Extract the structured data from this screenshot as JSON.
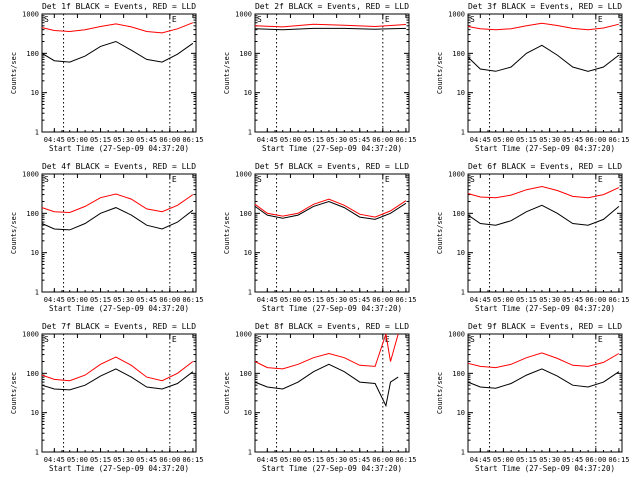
{
  "colors": {
    "events": "#000000",
    "lld": "#ff0000",
    "axes": "#000000",
    "background": "#ffffff"
  },
  "chart_data": [
    {
      "type": "line",
      "title": "Det 1f BLACK = Events, RED = LLD",
      "xlabel": "Start Time (27-Sep-09 04:37:20)",
      "ylabel": "Counts/sec",
      "y_scale": "log",
      "ylim": [
        1,
        1000
      ],
      "x_ticks": [
        "04:45",
        "05:00",
        "05:15",
        "05:30",
        "05:45",
        "06:00",
        "06:15"
      ],
      "y_ticks": [
        "1",
        "10",
        "100",
        "1000"
      ],
      "markers": [
        "S",
        "E"
      ],
      "series": [
        {
          "color": "black",
          "x": [
            "04:37",
            "04:45",
            "04:55",
            "05:05",
            "05:15",
            "05:25",
            "05:35",
            "05:45",
            "05:55",
            "06:05",
            "06:15"
          ],
          "values": [
            100,
            65,
            60,
            85,
            150,
            200,
            120,
            70,
            60,
            95,
            180
          ]
        },
        {
          "color": "red",
          "x": [
            "04:37",
            "04:45",
            "04:55",
            "05:05",
            "05:15",
            "05:25",
            "05:35",
            "05:45",
            "05:55",
            "06:05",
            "06:15"
          ],
          "values": [
            450,
            380,
            360,
            400,
            480,
            560,
            470,
            360,
            330,
            420,
            600
          ]
        }
      ]
    },
    {
      "type": "line",
      "title": "Det 2f BLACK = Events, RED = LLD",
      "xlabel": "Start Time (27-Sep-09 04:37:20)",
      "ylabel": "Counts/sec",
      "y_scale": "log",
      "ylim": [
        1,
        1000
      ],
      "x_ticks": [
        "04:45",
        "05:00",
        "05:15",
        "05:30",
        "05:45",
        "06:00",
        "06:15"
      ],
      "y_ticks": [
        "1",
        "10",
        "100",
        "1000"
      ],
      "markers": [
        "S",
        "E"
      ],
      "series": [
        {
          "color": "black",
          "x": [
            "04:37",
            "04:55",
            "05:15",
            "05:35",
            "05:55",
            "06:15"
          ],
          "values": [
            420,
            400,
            430,
            430,
            410,
            430
          ]
        },
        {
          "color": "red",
          "x": [
            "04:37",
            "04:55",
            "05:15",
            "05:35",
            "05:55",
            "06:15"
          ],
          "values": [
            500,
            470,
            550,
            520,
            480,
            540
          ]
        }
      ]
    },
    {
      "type": "line",
      "title": "Det 3f BLACK = Events, RED = LLD",
      "xlabel": "Start Time (27-Sep-09 04:37:20)",
      "ylabel": "Counts/sec",
      "y_scale": "log",
      "ylim": [
        1,
        1000
      ],
      "x_ticks": [
        "04:45",
        "05:00",
        "05:15",
        "05:30",
        "05:45",
        "06:00",
        "06:15"
      ],
      "y_ticks": [
        "1",
        "10",
        "100",
        "1000"
      ],
      "markers": [
        "S",
        "E"
      ],
      "series": [
        {
          "color": "black",
          "x": [
            "04:37",
            "04:45",
            "04:55",
            "05:05",
            "05:15",
            "05:25",
            "05:35",
            "05:45",
            "05:55",
            "06:05",
            "06:15"
          ],
          "values": [
            80,
            40,
            35,
            45,
            100,
            160,
            90,
            45,
            35,
            45,
            90
          ]
        },
        {
          "color": "red",
          "x": [
            "04:37",
            "04:45",
            "04:55",
            "05:05",
            "05:15",
            "05:25",
            "05:35",
            "05:45",
            "05:55",
            "06:05",
            "06:15"
          ],
          "values": [
            480,
            420,
            400,
            420,
            500,
            580,
            510,
            430,
            400,
            440,
            550
          ]
        }
      ]
    },
    {
      "type": "line",
      "title": "Det 4f BLACK = Events, RED = LLD",
      "xlabel": "Start Time (27-Sep-09 04:37:20)",
      "ylabel": "Counts/sec",
      "y_scale": "log",
      "ylim": [
        1,
        1000
      ],
      "x_ticks": [
        "04:45",
        "05:00",
        "05:15",
        "05:30",
        "05:45",
        "06:00",
        "06:15"
      ],
      "y_ticks": [
        "1",
        "10",
        "100",
        "1000"
      ],
      "markers": [
        "S",
        "E"
      ],
      "series": [
        {
          "color": "black",
          "x": [
            "04:37",
            "04:45",
            "04:55",
            "05:05",
            "05:15",
            "05:25",
            "05:35",
            "05:45",
            "05:55",
            "06:05",
            "06:15"
          ],
          "values": [
            55,
            40,
            38,
            55,
            100,
            140,
            90,
            50,
            40,
            60,
            120
          ]
        },
        {
          "color": "red",
          "x": [
            "04:37",
            "04:45",
            "04:55",
            "05:05",
            "05:15",
            "05:25",
            "05:35",
            "05:45",
            "05:55",
            "06:05",
            "06:15"
          ],
          "values": [
            140,
            110,
            105,
            150,
            250,
            310,
            230,
            130,
            110,
            160,
            300
          ]
        }
      ]
    },
    {
      "type": "line",
      "title": "Det 5f BLACK = Events, RED = LLD",
      "xlabel": "Start Time (27-Sep-09 04:37:20)",
      "ylabel": "Counts/sec",
      "y_scale": "log",
      "ylim": [
        1,
        1000
      ],
      "x_ticks": [
        "04:45",
        "05:00",
        "05:15",
        "05:30",
        "05:45",
        "06:00",
        "06:15"
      ],
      "y_ticks": [
        "1",
        "10",
        "100",
        "1000"
      ],
      "markers": [
        "S",
        "E"
      ],
      "series": [
        {
          "color": "black",
          "x": [
            "04:37",
            "04:45",
            "04:55",
            "05:05",
            "05:15",
            "05:25",
            "05:35",
            "05:45",
            "05:55",
            "06:05",
            "06:15"
          ],
          "values": [
            150,
            90,
            75,
            90,
            150,
            200,
            140,
            80,
            70,
            100,
            180
          ]
        },
        {
          "color": "red",
          "x": [
            "04:37",
            "04:45",
            "04:55",
            "05:05",
            "05:15",
            "05:25",
            "05:35",
            "05:45",
            "05:55",
            "06:05",
            "06:15"
          ],
          "values": [
            170,
            100,
            85,
            100,
            170,
            230,
            160,
            95,
            80,
            115,
            210
          ]
        }
      ]
    },
    {
      "type": "line",
      "title": "Det 6f BLACK = Events, RED = LLD",
      "xlabel": "Start Time (27-Sep-09 04:37:20)",
      "ylabel": "Counts/sec",
      "y_scale": "log",
      "ylim": [
        1,
        1000
      ],
      "x_ticks": [
        "04:45",
        "05:00",
        "05:15",
        "05:30",
        "05:45",
        "06:00",
        "06:15"
      ],
      "y_ticks": [
        "1",
        "10",
        "100",
        "1000"
      ],
      "markers": [
        "S",
        "E"
      ],
      "series": [
        {
          "color": "black",
          "x": [
            "04:37",
            "04:45",
            "04:55",
            "05:05",
            "05:15",
            "05:25",
            "05:35",
            "05:45",
            "05:55",
            "06:05",
            "06:15"
          ],
          "values": [
            90,
            55,
            50,
            65,
            110,
            160,
            100,
            55,
            50,
            70,
            150
          ]
        },
        {
          "color": "red",
          "x": [
            "04:37",
            "04:45",
            "04:55",
            "05:05",
            "05:15",
            "05:25",
            "05:35",
            "05:45",
            "05:55",
            "06:05",
            "06:15"
          ],
          "values": [
            320,
            260,
            250,
            290,
            400,
            480,
            380,
            270,
            250,
            300,
            450
          ]
        }
      ]
    },
    {
      "type": "line",
      "title": "Det 7f BLACK = Events, RED = LLD",
      "xlabel": "Start Time (27-Sep-09 04:37:20)",
      "ylabel": "Counts/sec",
      "y_scale": "log",
      "ylim": [
        1,
        1000
      ],
      "x_ticks": [
        "04:45",
        "05:00",
        "05:15",
        "05:30",
        "05:45",
        "06:00",
        "06:15"
      ],
      "y_ticks": [
        "1",
        "10",
        "100",
        "1000"
      ],
      "markers": [
        "S",
        "E"
      ],
      "series": [
        {
          "color": "black",
          "x": [
            "04:37",
            "04:45",
            "04:55",
            "05:05",
            "05:15",
            "05:25",
            "05:35",
            "05:45",
            "05:55",
            "06:05",
            "06:15"
          ],
          "values": [
            50,
            40,
            38,
            50,
            85,
            130,
            80,
            45,
            40,
            55,
            110
          ]
        },
        {
          "color": "red",
          "x": [
            "04:37",
            "04:45",
            "04:55",
            "05:05",
            "05:15",
            "05:25",
            "05:35",
            "05:45",
            "05:55",
            "06:05",
            "06:15"
          ],
          "values": [
            90,
            70,
            65,
            90,
            170,
            260,
            160,
            80,
            65,
            100,
            200
          ]
        }
      ]
    },
    {
      "type": "line",
      "title": "Det 8f BLACK = Events, RED = LLD",
      "xlabel": "Start Time (27-Sep-09 04:37:20)",
      "ylabel": "Counts/sec",
      "y_scale": "log",
      "ylim": [
        1,
        1000
      ],
      "x_ticks": [
        "04:45",
        "05:00",
        "05:15",
        "05:30",
        "05:45",
        "06:00",
        "06:15"
      ],
      "y_ticks": [
        "1",
        "10",
        "100",
        "1000"
      ],
      "markers": [
        "S",
        "E"
      ],
      "series": [
        {
          "color": "black",
          "x": [
            "04:37",
            "04:45",
            "04:55",
            "05:05",
            "05:15",
            "05:25",
            "05:35",
            "05:45",
            "05:55",
            "06:02",
            "06:05",
            "06:10"
          ],
          "values": [
            60,
            45,
            40,
            60,
            110,
            170,
            110,
            60,
            55,
            15,
            60,
            80
          ]
        },
        {
          "color": "red",
          "x": [
            "04:37",
            "04:45",
            "04:55",
            "05:05",
            "05:15",
            "05:25",
            "05:35",
            "05:45",
            "05:55",
            "06:02",
            "06:05",
            "06:10"
          ],
          "values": [
            200,
            140,
            130,
            170,
            250,
            320,
            250,
            160,
            150,
            1000,
            200,
            1000
          ]
        }
      ]
    },
    {
      "type": "line",
      "title": "Det 9f BLACK = Events, RED = LLD",
      "xlabel": "Start Time (27-Sep-09 04:37:20)",
      "ylabel": "Counts/sec",
      "y_scale": "log",
      "ylim": [
        1,
        1000
      ],
      "x_ticks": [
        "04:45",
        "05:00",
        "05:15",
        "05:30",
        "05:45",
        "06:00",
        "06:15"
      ],
      "y_ticks": [
        "1",
        "10",
        "100",
        "1000"
      ],
      "markers": [
        "S",
        "E"
      ],
      "series": [
        {
          "color": "black",
          "x": [
            "04:37",
            "04:45",
            "04:55",
            "05:05",
            "05:15",
            "05:25",
            "05:35",
            "05:45",
            "05:55",
            "06:05",
            "06:15"
          ],
          "values": [
            60,
            45,
            42,
            55,
            90,
            130,
            85,
            50,
            45,
            60,
            110
          ]
        },
        {
          "color": "red",
          "x": [
            "04:37",
            "04:45",
            "04:55",
            "05:05",
            "05:15",
            "05:25",
            "05:35",
            "05:45",
            "05:55",
            "06:05",
            "06:15"
          ],
          "values": [
            180,
            150,
            140,
            170,
            250,
            330,
            240,
            160,
            150,
            190,
            320
          ]
        }
      ]
    }
  ]
}
